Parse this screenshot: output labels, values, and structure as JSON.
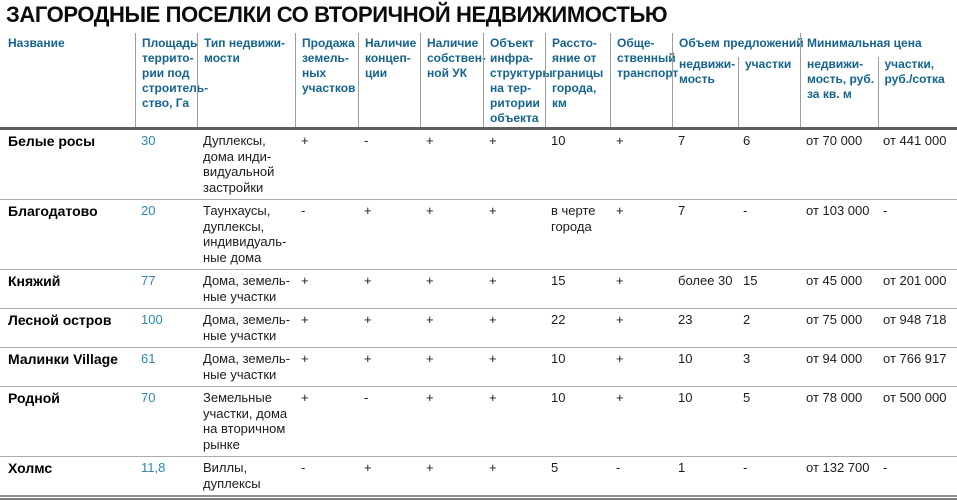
{
  "colors": {
    "header_text": "#14648f",
    "area_value": "#2e86b2",
    "header_rule": "#5e5e5e",
    "row_rule": "#ababab"
  },
  "chart_data": {
    "type": "table",
    "title": "ЗАГОРОДНЫЕ ПОСЕЛКИ СО ВТОРИЧНОЙ НЕДВИЖИМОСТЬЮ",
    "headers": [
      "Название",
      "Площадь\nтеррито-\nрии под\nстроитель-\nство, Га",
      "Тип недвижи-\nмости",
      "Продажа\nземель-\nных\nучастков",
      "Наличие\nконцеп-\nции",
      "Наличие\nсобствен-\nной УК",
      "Объект\nинфра-\nструктуры\nна тер-\nритории\nобъекта",
      "Рассто-\nяние от\nграницы\nгорода,\nкм",
      "Обще-\nственный\nтранспорт"
    ],
    "groups": [
      {
        "label": "Объем предложений",
        "sub": [
          "недвижи-\nмость",
          "участки"
        ]
      },
      {
        "label": "Минимальная цена",
        "sub": [
          "недвижи-\nмость, руб.\nза кв. м",
          "участки,\nруб./сотка"
        ]
      }
    ],
    "rows": [
      {
        "name": "Белые росы",
        "area": "30",
        "type": "Дуплексы,\nдома инди-\nвидуальной\nзастройки",
        "land_sale": "+",
        "concept": "-",
        "mgmt": "+",
        "infra": "+",
        "distance": "10",
        "transport": "+",
        "offers_realty": "7",
        "offers_plots": "6",
        "price_realty": "от 70 000",
        "price_plots": "от 441 000"
      },
      {
        "name": "Благодатово",
        "area": "20",
        "type": "Таунхаусы,\nдуплексы,\nиндивидуаль-\nные дома",
        "land_sale": "-",
        "concept": "+",
        "mgmt": "+",
        "infra": "+",
        "distance": "в черте\nгорода",
        "transport": "+",
        "offers_realty": "7",
        "offers_plots": "-",
        "price_realty": "от 103 000",
        "price_plots": "-"
      },
      {
        "name": "Княжий",
        "area": "77",
        "type": "Дома, земель-\nные участки",
        "land_sale": "+",
        "concept": "+",
        "mgmt": "+",
        "infra": "+",
        "distance": "15",
        "transport": "+",
        "offers_realty": "более 30",
        "offers_plots": "15",
        "price_realty": "от 45 000",
        "price_plots": "от 201 000"
      },
      {
        "name": "Лесной остров",
        "area": "100",
        "type": "Дома, земель-\nные участки",
        "land_sale": "+",
        "concept": "+",
        "mgmt": "+",
        "infra": "+",
        "distance": "22",
        "transport": "+",
        "offers_realty": "23",
        "offers_plots": "2",
        "price_realty": "от 75 000",
        "price_plots": "от 948 718"
      },
      {
        "name": "Малинки Village",
        "area": "61",
        "type": "Дома, земель-\nные участки",
        "land_sale": "+",
        "concept": "+",
        "mgmt": "+",
        "infra": "+",
        "distance": "10",
        "transport": "+",
        "offers_realty": "10",
        "offers_plots": "3",
        "price_realty": "от 94 000",
        "price_plots": "от 766 917"
      },
      {
        "name": "Родной",
        "area": "70",
        "type": "Земельные\nучастки, дома\nна вторичном\nрынке",
        "land_sale": "+",
        "concept": "-",
        "mgmt": "+",
        "infra": "+",
        "distance": "10",
        "transport": "+",
        "offers_realty": "10",
        "offers_plots": "5",
        "price_realty": "от 78 000",
        "price_plots": "от 500 000"
      },
      {
        "name": "Холмс",
        "area": "11,8",
        "type": "Виллы,\nдуплексы",
        "land_sale": "-",
        "concept": "+",
        "mgmt": "+",
        "infra": "+",
        "distance": "5",
        "transport": "-",
        "offers_realty": "1",
        "offers_plots": "-",
        "price_realty": "от 132 700",
        "price_plots": "-"
      }
    ]
  }
}
